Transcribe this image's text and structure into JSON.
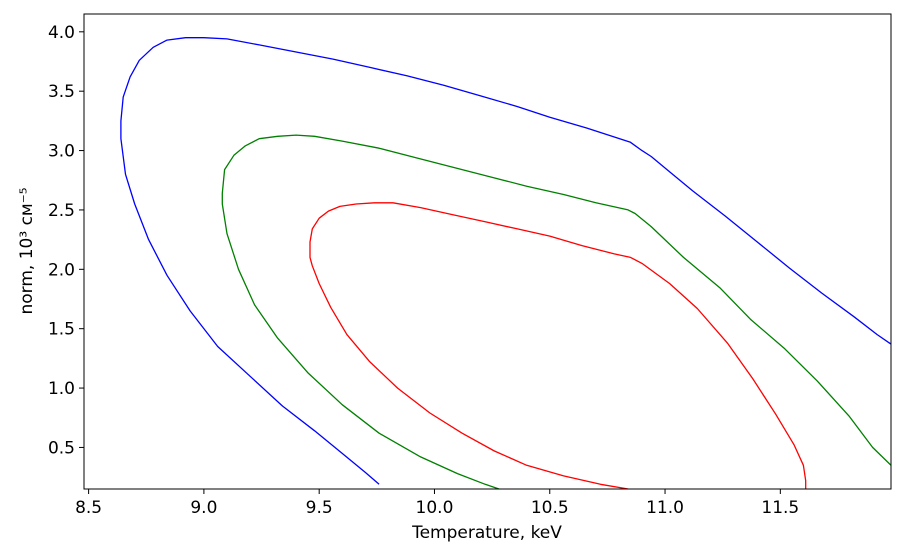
{
  "chart_data": {
    "type": "line",
    "title": "",
    "xlabel": "Temperature, keV",
    "ylabel": "norm, 10³ см⁻⁵",
    "xlim": [
      8.48,
      11.98
    ],
    "ylim": [
      0.15,
      4.15
    ],
    "xticks": [
      8.5,
      9.0,
      9.5,
      10.0,
      10.5,
      11.0,
      11.5
    ],
    "xtick_labels": [
      "8.5",
      "9.0",
      "9.5",
      "10.0",
      "10.5",
      "11.0",
      "11.5"
    ],
    "yticks": [
      0.5,
      1.0,
      1.5,
      2.0,
      2.5,
      3.0,
      3.5,
      4.0
    ],
    "ytick_labels": [
      "0.5",
      "1.0",
      "1.5",
      "2.0",
      "2.5",
      "3.0",
      "3.5",
      "4.0"
    ],
    "grid": false,
    "legend": "none",
    "series": [
      {
        "color": "#ff0000",
        "x": [
          11.61,
          11.61,
          11.6,
          11.56,
          11.48,
          11.38,
          11.27,
          11.14,
          11.02,
          10.9,
          10.85,
          10.78,
          10.64,
          10.5,
          10.36,
          10.22,
          10.08,
          9.94,
          9.82,
          9.74,
          9.66,
          9.59,
          9.54,
          9.5,
          9.47,
          9.46,
          9.46,
          9.47,
          9.5,
          9.55,
          9.62,
          9.72,
          9.84,
          9.98,
          10.12,
          10.26,
          10.4,
          10.56,
          10.72,
          10.84
        ],
        "y": [
          0.15,
          0.22,
          0.35,
          0.52,
          0.78,
          1.08,
          1.38,
          1.67,
          1.88,
          2.05,
          2.1,
          2.13,
          2.2,
          2.28,
          2.34,
          2.4,
          2.46,
          2.52,
          2.56,
          2.56,
          2.55,
          2.53,
          2.49,
          2.43,
          2.34,
          2.23,
          2.1,
          2.03,
          1.88,
          1.68,
          1.45,
          1.22,
          1.0,
          0.79,
          0.62,
          0.47,
          0.35,
          0.26,
          0.19,
          0.15
        ]
      },
      {
        "color": "#008000",
        "x": [
          11.98,
          11.9,
          11.8,
          11.66,
          11.52,
          11.37,
          11.24,
          11.08,
          10.94,
          10.87,
          10.84,
          10.7,
          10.56,
          10.4,
          10.24,
          10.08,
          9.92,
          9.76,
          9.6,
          9.48,
          9.4,
          9.32,
          9.24,
          9.18,
          9.13,
          9.09,
          9.08,
          9.08,
          9.1,
          9.15,
          9.22,
          9.32,
          9.45,
          9.6,
          9.76,
          9.94,
          10.1,
          10.22,
          10.28
        ],
        "y": [
          0.35,
          0.5,
          0.76,
          1.06,
          1.33,
          1.58,
          1.84,
          2.1,
          2.36,
          2.47,
          2.5,
          2.56,
          2.63,
          2.7,
          2.78,
          2.86,
          2.94,
          3.02,
          3.08,
          3.12,
          3.13,
          3.12,
          3.1,
          3.04,
          2.96,
          2.84,
          2.64,
          2.55,
          2.3,
          2.0,
          1.7,
          1.42,
          1.13,
          0.86,
          0.62,
          0.42,
          0.28,
          0.19,
          0.15
        ]
      },
      {
        "color": "#0000ff",
        "x": [
          11.98,
          11.92,
          11.82,
          11.68,
          11.54,
          11.4,
          11.26,
          11.12,
          11.02,
          10.94,
          10.9,
          10.85,
          10.66,
          10.5,
          10.36,
          10.2,
          10.04,
          9.88,
          9.72,
          9.56,
          9.4,
          9.24,
          9.1,
          9.0,
          8.92,
          8.84,
          8.78,
          8.72,
          8.68,
          8.65,
          8.64,
          8.64,
          8.66,
          8.7,
          8.76,
          8.84,
          8.94,
          9.06,
          9.2,
          9.34,
          9.48,
          9.6,
          9.7,
          9.76
        ],
        "y": [
          1.37,
          1.45,
          1.6,
          1.8,
          2.01,
          2.23,
          2.45,
          2.66,
          2.82,
          2.95,
          3.0,
          3.07,
          3.19,
          3.28,
          3.37,
          3.46,
          3.55,
          3.63,
          3.7,
          3.77,
          3.83,
          3.89,
          3.94,
          3.95,
          3.95,
          3.93,
          3.87,
          3.76,
          3.62,
          3.45,
          3.25,
          3.1,
          2.8,
          2.55,
          2.25,
          1.95,
          1.65,
          1.35,
          1.1,
          0.85,
          0.64,
          0.45,
          0.29,
          0.19
        ]
      }
    ]
  }
}
